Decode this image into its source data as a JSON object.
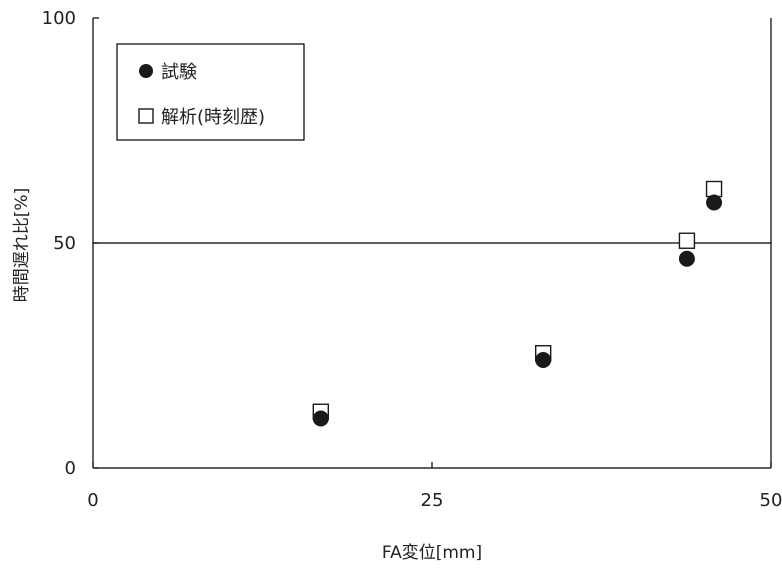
{
  "chart_data": {
    "type": "scatter",
    "xlabel": "FA変位[mm]",
    "ylabel": "時間遅れ比[%]",
    "xlim": [
      0,
      50
    ],
    "ylim": [
      0,
      100
    ],
    "xticks": [
      "0",
      "25",
      "50"
    ],
    "yticks": [
      "0",
      "50",
      "100"
    ],
    "reference_line_y": 50,
    "legend_position": "top-left",
    "series": [
      {
        "name": "試験",
        "marker": "filled-circle",
        "color": "#1a1a1a",
        "points": [
          {
            "x": 16.8,
            "y": 11
          },
          {
            "x": 33.2,
            "y": 24
          },
          {
            "x": 43.8,
            "y": 46.5
          },
          {
            "x": 45.8,
            "y": 59
          }
        ]
      },
      {
        "name": "解析(時刻歴)",
        "marker": "open-square",
        "color": "#1a1a1a",
        "points": [
          {
            "x": 16.8,
            "y": 12.5
          },
          {
            "x": 33.2,
            "y": 25.5
          },
          {
            "x": 43.8,
            "y": 50.5
          },
          {
            "x": 45.8,
            "y": 62
          }
        ]
      }
    ]
  }
}
